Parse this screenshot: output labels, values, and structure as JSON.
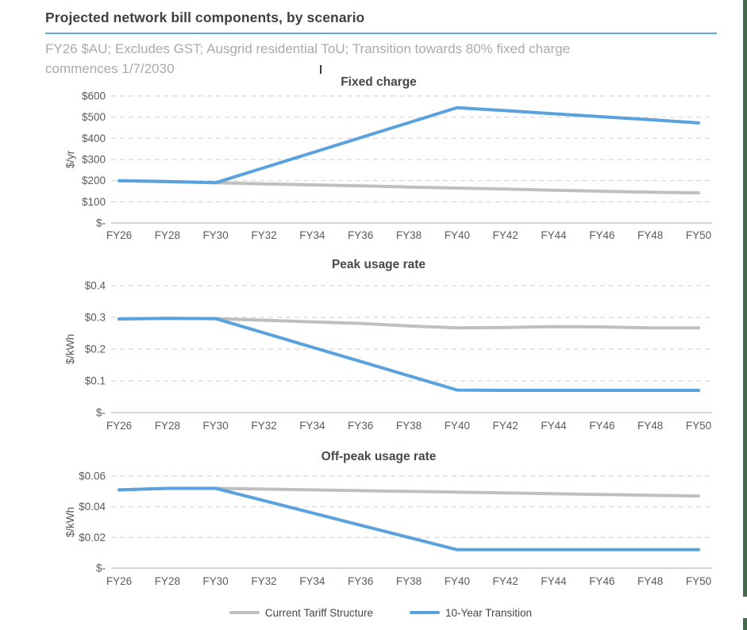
{
  "page": {
    "title": "Projected network bill components, by scenario",
    "subtitle_line1": "FY26 $AU; Excludes GST; Ausgrid residential ToU; Transition towards 80% fixed charge",
    "subtitle_line2": "commences 1/7/2030",
    "accent_underline_color": "#61a9de",
    "window_edge_strip_color": "#46684c"
  },
  "colors": {
    "current_tariff": "#bfbfbf",
    "transition": "#5aa2dd",
    "gridline": "#d8d8d8",
    "zero_axis": "#c8c8c8",
    "axis_text": "#595b5e",
    "chart_title_text": "#45484b"
  },
  "legend": [
    {
      "label": "Current Tariff Structure",
      "color": "#bfbfbf"
    },
    {
      "label": "10-Year Transition",
      "color": "#5aa2dd"
    }
  ],
  "chart_data": [
    {
      "type": "line",
      "title": "Fixed charge",
      "ylabel": "$/yr",
      "ylim": [
        0,
        600
      ],
      "yticks": [
        0,
        100,
        200,
        300,
        400,
        500,
        600
      ],
      "ytick_labels": [
        "$-",
        "$100",
        "$200",
        "$300",
        "$400",
        "$500",
        "$600"
      ],
      "grid": "dashed-horizontal",
      "categories": [
        "FY26",
        "FY28",
        "FY30",
        "FY32",
        "FY34",
        "FY36",
        "FY38",
        "FY40",
        "FY42",
        "FY44",
        "FY46",
        "FY48",
        "FY50"
      ],
      "series": [
        {
          "name": "Current Tariff Structure",
          "color": "#bfbfbf",
          "values": [
            200,
            195,
            190,
            185,
            180,
            175,
            170,
            165,
            160,
            155,
            150,
            145,
            142
          ]
        },
        {
          "name": "10-Year Transition",
          "color": "#5aa2dd",
          "values": [
            200,
            196,
            190,
            261,
            332,
            403,
            474,
            545,
            531,
            516,
            502,
            488,
            473
          ]
        }
      ]
    },
    {
      "type": "line",
      "title": "Peak usage rate",
      "ylabel": "$/kWh",
      "ylim": [
        0,
        0.4
      ],
      "yticks": [
        0,
        0.1,
        0.2,
        0.3,
        0.4
      ],
      "ytick_labels": [
        "$-",
        "$0.1",
        "$0.2",
        "$0.3",
        "$0.4"
      ],
      "grid": "dashed-horizontal",
      "categories": [
        "FY26",
        "FY28",
        "FY30",
        "FY32",
        "FY34",
        "FY36",
        "FY38",
        "FY40",
        "FY42",
        "FY44",
        "FY46",
        "FY48",
        "FY50"
      ],
      "series": [
        {
          "name": "Current Tariff Structure",
          "color": "#bfbfbf",
          "values": [
            0.295,
            0.297,
            0.296,
            0.291,
            0.286,
            0.281,
            0.273,
            0.267,
            0.268,
            0.271,
            0.27,
            0.267,
            0.267
          ]
        },
        {
          "name": "10-Year Transition",
          "color": "#5aa2dd",
          "values": [
            0.295,
            0.297,
            0.296,
            0.251,
            0.206,
            0.161,
            0.116,
            0.071,
            0.07,
            0.07,
            0.07,
            0.07,
            0.07
          ]
        }
      ]
    },
    {
      "type": "line",
      "title": "Off-peak usage rate",
      "ylabel": "$/kWh",
      "ylim": [
        0,
        0.06
      ],
      "yticks": [
        0,
        0.02,
        0.04,
        0.06
      ],
      "ytick_labels": [
        "$-",
        "$0.02",
        "$0.04",
        "$0.06"
      ],
      "grid": "dashed-horizontal",
      "categories": [
        "FY26",
        "FY28",
        "FY30",
        "FY32",
        "FY34",
        "FY36",
        "FY38",
        "FY40",
        "FY42",
        "FY44",
        "FY46",
        "FY48",
        "FY50"
      ],
      "series": [
        {
          "name": "Current Tariff Structure",
          "color": "#bfbfbf",
          "values": [
            0.051,
            0.052,
            0.052,
            0.0515,
            0.051,
            0.0505,
            0.05,
            0.0495,
            0.049,
            0.0485,
            0.048,
            0.0475,
            0.047
          ]
        },
        {
          "name": "10-Year Transition",
          "color": "#5aa2dd",
          "values": [
            0.051,
            0.052,
            0.052,
            0.044,
            0.036,
            0.028,
            0.02,
            0.012,
            0.012,
            0.012,
            0.012,
            0.012,
            0.012
          ]
        }
      ]
    }
  ]
}
